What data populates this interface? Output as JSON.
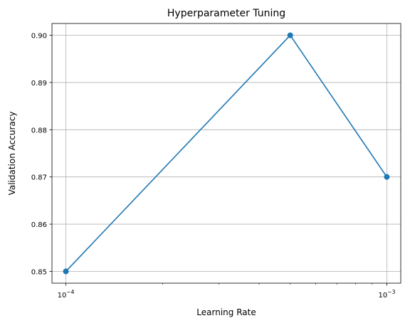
{
  "chart_data": {
    "type": "line",
    "title": "Hyperparameter Tuning",
    "xlabel": "Learning Rate",
    "ylabel": "Validation Accuracy",
    "x_scale": "log",
    "xlim": [
      9.05e-05,
      0.001105
    ],
    "ylim": [
      0.8475,
      0.9025
    ],
    "grid": true,
    "legend": "none",
    "line_color": "#1f77b4",
    "x_major_ticks": [
      {
        "value": 0.0001,
        "base": "10",
        "exp": "−4"
      },
      {
        "value": 0.001,
        "base": "10",
        "exp": "−3"
      }
    ],
    "x_minor_ticks": [
      0.0002,
      0.0003,
      0.0004,
      0.0005,
      0.0006,
      0.0007,
      0.0008,
      0.0009
    ],
    "y_ticks": [
      {
        "value": 0.85,
        "label": "0.85"
      },
      {
        "value": 0.86,
        "label": "0.86"
      },
      {
        "value": 0.87,
        "label": "0.87"
      },
      {
        "value": 0.88,
        "label": "0.88"
      },
      {
        "value": 0.89,
        "label": "0.89"
      },
      {
        "value": 0.9,
        "label": "0.90"
      }
    ],
    "series": [
      {
        "x": [
          0.0001,
          0.0005,
          0.001
        ],
        "y": [
          0.85,
          0.9,
          0.87
        ]
      }
    ]
  }
}
